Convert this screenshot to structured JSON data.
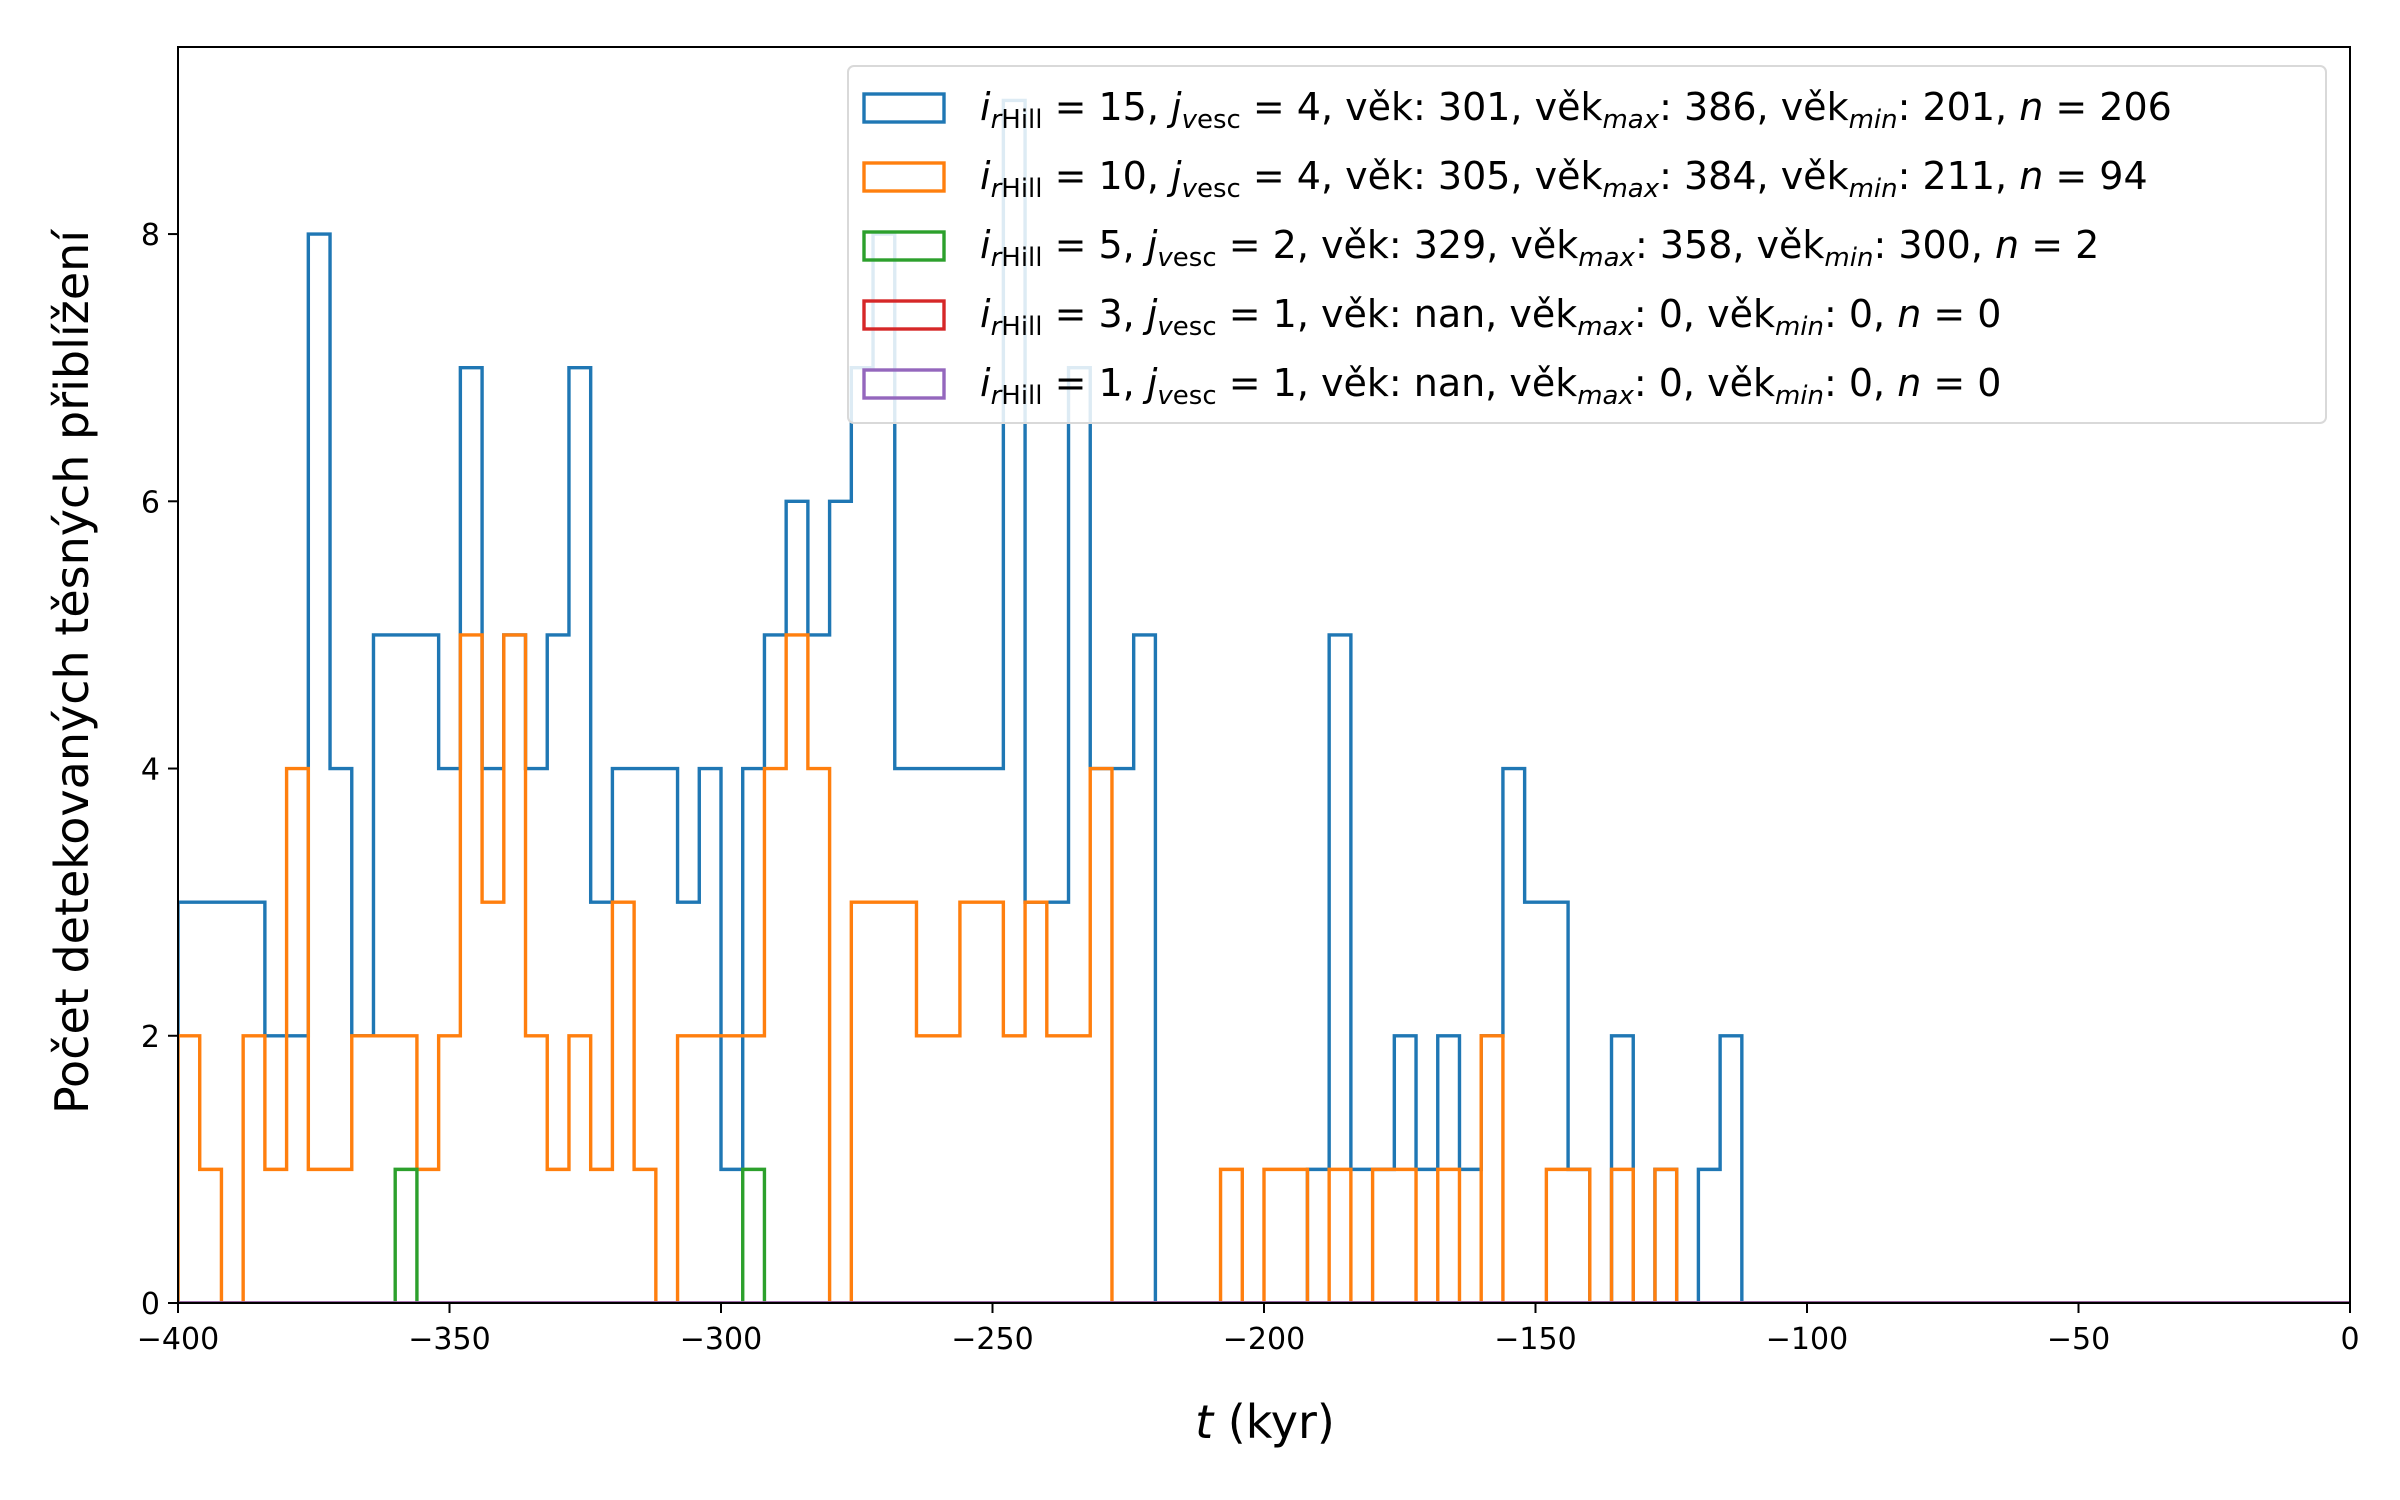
{
  "chart_data": {
    "type": "histogram",
    "xlabel_var": "t",
    "xlabel_unit": " (kyr)",
    "ylabel": "Počet detekovaných těsných přiblížení",
    "xlim": [
      -400,
      0
    ],
    "ylim": [
      0,
      9.4
    ],
    "xticks": [
      -400,
      -350,
      -300,
      -250,
      -200,
      -150,
      -100,
      -50,
      0
    ],
    "xtick_labels": [
      "−400",
      "−350",
      "−300",
      "−250",
      "−200",
      "−150",
      "−100",
      "−50",
      "0"
    ],
    "yticks": [
      0,
      2,
      4,
      6,
      8
    ],
    "ytick_labels": [
      "0",
      "2",
      "4",
      "6",
      "8"
    ],
    "grid": false,
    "legend_position": "upper-right",
    "bin_edges_start": -400,
    "bin_width": 4,
    "series": [
      {
        "color": "#1f77b4",
        "legend": {
          "ir": " = 15, ",
          "jv": " = 4, věk: 301, věk",
          "max": ": 386, věk",
          "min": ": 201, ",
          "n": " = 206"
        },
        "values": [
          3,
          3,
          3,
          3,
          2,
          2,
          8,
          4,
          2,
          5,
          5,
          5,
          4,
          7,
          4,
          5,
          4,
          5,
          7,
          3,
          4,
          4,
          4,
          3,
          4,
          1,
          4,
          5,
          6,
          5,
          6,
          7,
          8,
          4,
          4,
          4,
          4,
          4,
          9,
          3,
          3,
          7,
          4,
          4,
          5,
          0,
          0,
          0,
          0,
          0,
          0,
          0,
          1,
          5,
          1,
          1,
          2,
          1,
          2,
          1,
          2,
          4,
          3,
          3,
          1,
          0,
          2,
          0,
          1,
          0,
          1,
          2,
          0,
          0,
          0,
          0,
          0,
          0,
          0,
          0,
          0,
          0,
          0,
          0,
          0,
          0,
          0,
          0,
          0,
          0,
          0,
          0,
          0,
          0,
          0,
          0,
          0,
          0,
          0,
          0
        ]
      },
      {
        "color": "#ff7f0e",
        "legend": {
          "ir": " = 10, ",
          "jv": " = 4, věk: 305, věk",
          "max": ": 384, věk",
          "min": ": 211, ",
          "n": " = 94"
        },
        "values": [
          2,
          1,
          0,
          2,
          1,
          4,
          1,
          1,
          2,
          2,
          2,
          1,
          2,
          5,
          3,
          5,
          2,
          1,
          2,
          1,
          3,
          1,
          0,
          2,
          2,
          2,
          2,
          4,
          5,
          4,
          0,
          3,
          3,
          3,
          2,
          2,
          3,
          3,
          2,
          3,
          2,
          2,
          4,
          0,
          0,
          0,
          0,
          0,
          1,
          0,
          1,
          1,
          0,
          1,
          0,
          1,
          1,
          0,
          1,
          0,
          2,
          0,
          0,
          1,
          1,
          0,
          1,
          0,
          1,
          0,
          0,
          0,
          0,
          0,
          0,
          0,
          0,
          0,
          0,
          0,
          0,
          0,
          0,
          0,
          0,
          0,
          0,
          0,
          0,
          0,
          0,
          0,
          0,
          0,
          0,
          0,
          0,
          0,
          0,
          0
        ]
      },
      {
        "color": "#2ca02c",
        "legend": {
          "ir": " =  5, ",
          "jv": " = 2, věk: 329, věk",
          "max": ": 358, věk",
          "min": ": 300, ",
          "n": " = 2"
        },
        "values": [
          0,
          0,
          0,
          0,
          0,
          0,
          0,
          0,
          0,
          0,
          1,
          0,
          0,
          0,
          0,
          0,
          0,
          0,
          0,
          0,
          0,
          0,
          0,
          0,
          0,
          0,
          1,
          0,
          0,
          0,
          0,
          0,
          0,
          0,
          0,
          0,
          0,
          0,
          0,
          0,
          0,
          0,
          0,
          0,
          0,
          0,
          0,
          0,
          0,
          0,
          0,
          0,
          0,
          0,
          0,
          0,
          0,
          0,
          0,
          0,
          0,
          0,
          0,
          0,
          0,
          0,
          0,
          0,
          0,
          0,
          0,
          0,
          0,
          0,
          0,
          0,
          0,
          0,
          0,
          0,
          0,
          0,
          0,
          0,
          0,
          0,
          0,
          0,
          0,
          0,
          0,
          0,
          0,
          0,
          0,
          0,
          0,
          0,
          0,
          0
        ]
      },
      {
        "color": "#d62728",
        "legend": {
          "ir": " =  3, ",
          "jv": " = 1, věk: nan, věk",
          "max": ":   0, věk",
          "min": ": 0, ",
          "n": " = 0"
        },
        "values": []
      },
      {
        "color": "#9467bd",
        "legend": {
          "ir": " =  1, ",
          "jv": " = 1, věk: nan, věk",
          "max": ":   0, věk",
          "min": ": 0, ",
          "n": " = 0"
        },
        "values": []
      }
    ],
    "legend_symbols": {
      "i": "i",
      "r": "r",
      "hill": "Hill",
      "j": "j",
      "v": "v",
      "esc": "esc",
      "n": "n"
    }
  }
}
